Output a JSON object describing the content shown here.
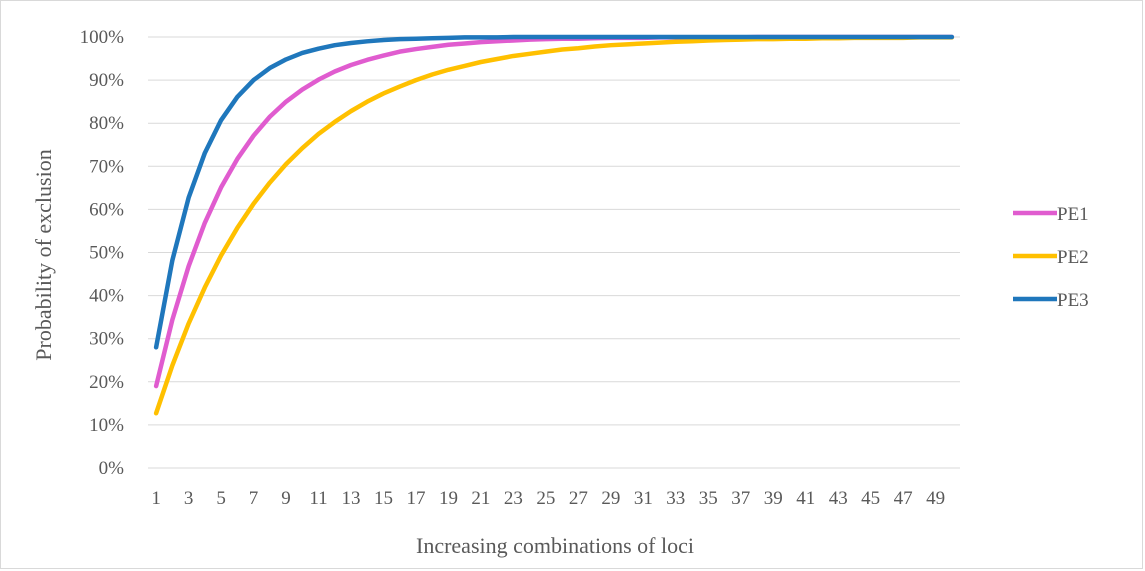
{
  "chart_data": {
    "type": "line",
    "title": "",
    "xlabel": "Increasing combinations of loci",
    "ylabel": "Probability of exclusion",
    "x": [
      1,
      2,
      3,
      4,
      5,
      6,
      7,
      8,
      9,
      10,
      11,
      12,
      13,
      14,
      15,
      16,
      17,
      18,
      19,
      20,
      21,
      22,
      23,
      24,
      25,
      26,
      27,
      28,
      29,
      30,
      31,
      32,
      33,
      34,
      35,
      36,
      37,
      38,
      39,
      40,
      41,
      42,
      43,
      44,
      45,
      46,
      47,
      48,
      49,
      50
    ],
    "x_tick_labels": [
      "1",
      "3",
      "5",
      "7",
      "9",
      "11",
      "13",
      "15",
      "17",
      "19",
      "21",
      "23",
      "25",
      "27",
      "29",
      "31",
      "33",
      "35",
      "37",
      "39",
      "41",
      "43",
      "45",
      "47",
      "49"
    ],
    "y_tick_labels": [
      "0%",
      "10%",
      "20%",
      "30%",
      "40%",
      "50%",
      "60%",
      "70%",
      "80%",
      "90%",
      "100%"
    ],
    "ylim": [
      0,
      100
    ],
    "grid": "horizontal",
    "legend_position": "right",
    "series": [
      {
        "name": "PE1",
        "color": "#e05ccf",
        "values": [
          19,
          34.4,
          46.8,
          56.9,
          65.1,
          71.7,
          77.1,
          81.5,
          85,
          87.8,
          90.1,
          92,
          93.5,
          94.7,
          95.7,
          96.6,
          97.2,
          97.7,
          98.2,
          98.5,
          98.8,
          99,
          99.2,
          99.4,
          99.5,
          99.6,
          99.6,
          99.7,
          99.8,
          99.8,
          99.8,
          99.9,
          99.9,
          99.9,
          99.9,
          99.9,
          99.9,
          100,
          100,
          100,
          100,
          100,
          100,
          100,
          100,
          100,
          100,
          100,
          100,
          100
        ]
      },
      {
        "name": "PE2",
        "color": "#ffc000",
        "values": [
          12.7,
          23.8,
          33.5,
          41.9,
          49.3,
          55.7,
          61.3,
          66.2,
          70.5,
          74.2,
          77.5,
          80.3,
          82.8,
          85,
          86.9,
          88.5,
          90,
          91.3,
          92.4,
          93.3,
          94.2,
          94.9,
          95.6,
          96.1,
          96.6,
          97.1,
          97.4,
          97.8,
          98.1,
          98.3,
          98.5,
          98.7,
          98.9,
          99,
          99.2,
          99.3,
          99.4,
          99.5,
          99.5,
          99.6,
          99.6,
          99.7,
          99.7,
          99.8,
          99.8,
          99.8,
          99.8,
          99.9,
          99.9,
          99.9
        ]
      },
      {
        "name": "PE3",
        "color": "#1f77bc",
        "values": [
          28,
          48.2,
          62.7,
          73.1,
          80.7,
          86.1,
          90,
          92.8,
          94.8,
          96.3,
          97.3,
          98.1,
          98.6,
          99,
          99.3,
          99.5,
          99.6,
          99.7,
          99.8,
          99.9,
          99.9,
          99.9,
          100,
          100,
          100,
          100,
          100,
          100,
          100,
          100,
          100,
          100,
          100,
          100,
          100,
          100,
          100,
          100,
          100,
          100,
          100,
          100,
          100,
          100,
          100,
          100,
          100,
          100,
          100,
          100
        ]
      }
    ]
  }
}
